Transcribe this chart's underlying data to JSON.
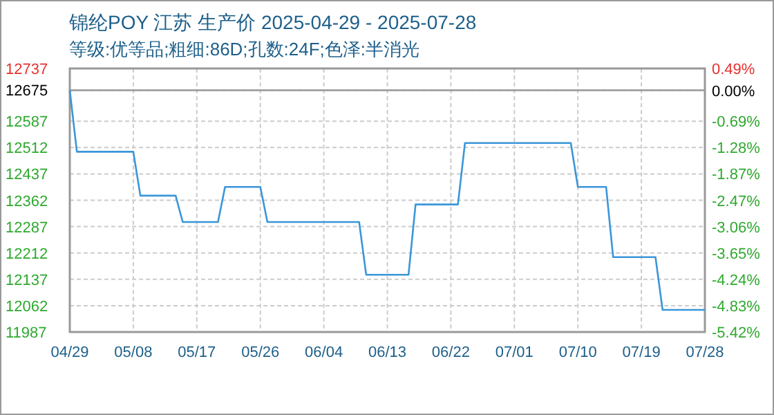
{
  "chart_data": {
    "type": "line",
    "title": "锦纶POY 江苏 生产价 2025-04-29 - 2025-07-28",
    "subtitle": "等级:优等品;粗细:86D;孔数:24F;色泽:半消光",
    "x": [
      "2025-04-29",
      "2025-04-30",
      "2025-05-08",
      "2025-05-09",
      "2025-05-14",
      "2025-05-15",
      "2025-05-20",
      "2025-05-21",
      "2025-05-26",
      "2025-05-27",
      "2025-06-09",
      "2025-06-10",
      "2025-06-16",
      "2025-06-17",
      "2025-06-23",
      "2025-06-24",
      "2025-07-09",
      "2025-07-10",
      "2025-07-14",
      "2025-07-15",
      "2025-07-21",
      "2025-07-22",
      "2025-07-28"
    ],
    "series": [
      {
        "color": "#3a96d8",
        "values": [
          12675,
          12500,
          12500,
          12375,
          12375,
          12300,
          12300,
          12400,
          12400,
          12300,
          12300,
          12150,
          12150,
          12350,
          12350,
          12525,
          12525,
          12400,
          12400,
          12200,
          12200,
          12050,
          12050
        ]
      }
    ],
    "xlim": [
      "2025-04-29",
      "2025-07-28"
    ],
    "xticks": [
      {
        "value": "2025-04-29",
        "label": "04/29"
      },
      {
        "value": "2025-05-08",
        "label": "05/08"
      },
      {
        "value": "2025-05-17",
        "label": "05/17"
      },
      {
        "value": "2025-05-26",
        "label": "05/26"
      },
      {
        "value": "2025-06-04",
        "label": "06/04"
      },
      {
        "value": "2025-06-13",
        "label": "06/13"
      },
      {
        "value": "2025-06-22",
        "label": "06/22"
      },
      {
        "value": "2025-07-01",
        "label": "07/01"
      },
      {
        "value": "2025-07-10",
        "label": "07/10"
      },
      {
        "value": "2025-07-19",
        "label": "07/19"
      },
      {
        "value": "2025-07-28",
        "label": "07/28"
      }
    ],
    "ylim": [
      11987,
      12737
    ],
    "yticks": [
      11987,
      12062,
      12137,
      12212,
      12287,
      12362,
      12437,
      12512,
      12587,
      12675,
      12737
    ],
    "y2lim": [
      -5.42,
      0.49
    ],
    "y2ticks": [
      {
        "value": -5.42,
        "label": "-5.42%"
      },
      {
        "value": -4.83,
        "label": "-4.83%"
      },
      {
        "value": -4.24,
        "label": "-4.24%"
      },
      {
        "value": -3.65,
        "label": "-3.65%"
      },
      {
        "value": -3.06,
        "label": "-3.06%"
      },
      {
        "value": -2.47,
        "label": "-2.47%"
      },
      {
        "value": -1.87,
        "label": "-1.87%"
      },
      {
        "value": -1.28,
        "label": "-1.28%"
      },
      {
        "value": -0.69,
        "label": "-0.69%"
      },
      {
        "value": 0,
        "label": "0.00%"
      },
      {
        "value": 0.49,
        "label": "0.49%"
      }
    ],
    "ref_lines": [
      {
        "axis": "y",
        "value": 12675,
        "color": "#999999"
      }
    ],
    "grid": true,
    "marker": "none",
    "line_style": "solid"
  }
}
